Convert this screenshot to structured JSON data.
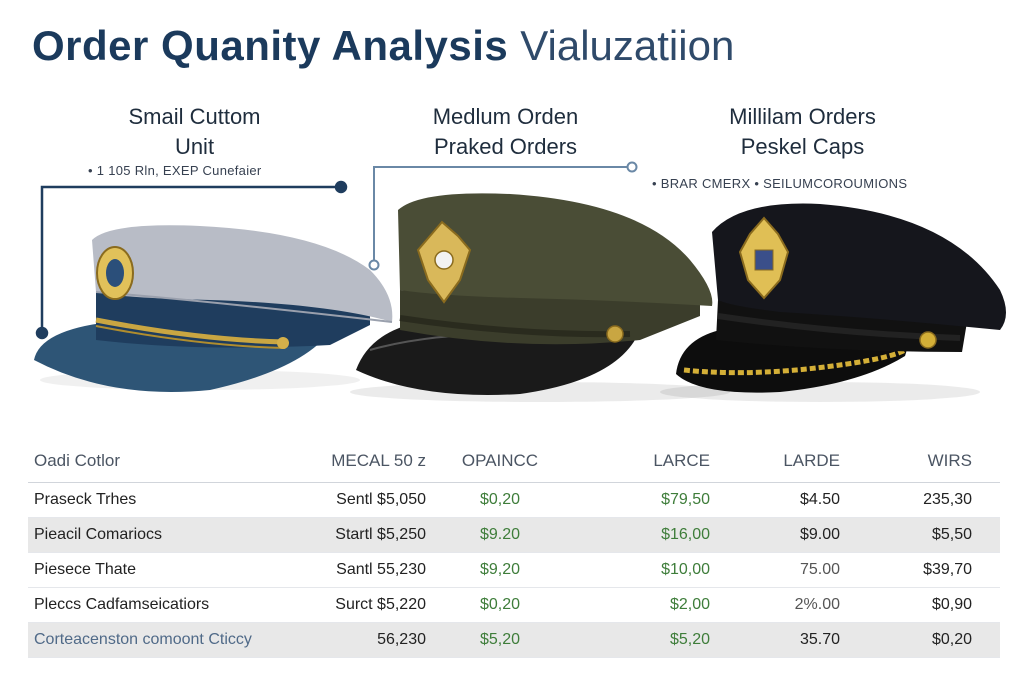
{
  "page": {
    "title_bold": "Order Quanity Analysis",
    "title_light": "Vialuzatiion"
  },
  "caps": [
    {
      "label_line1": "Smail Cuttom",
      "label_line2": "Unit",
      "note": "• 1 105 Rln,  EXEP Cunefaier",
      "icon": "navy-peaked-cap-icon",
      "colors": {
        "crown": "#b8bcc6",
        "band": "#1f3d5e",
        "visor": "#2e5576"
      }
    },
    {
      "label_line1": "Medlum Orden",
      "label_line2": "Praked Orders",
      "note": "",
      "icon": "olive-peaked-cap-icon",
      "colors": {
        "crown": "#4a4d36",
        "band": "#3b3d2b",
        "visor": "#1a1a1a"
      }
    },
    {
      "label_line1": "Millilam Orders",
      "label_line2": "Peskel Caps",
      "note": "• BRAR CMERX  •  SEILUMCOROUMIONS",
      "icon": "black-peaked-cap-icon",
      "colors": {
        "crown": "#15161c",
        "band": "#111",
        "visor": "#0d0d0d"
      }
    }
  ],
  "table": {
    "headers": [
      "Oadi Cotlor",
      "MECAL 50 z",
      "OPAINCC",
      "LARCE",
      "LARDE",
      "WIRS"
    ],
    "rows": [
      [
        "Prasеck Trhes",
        "Sentl $5,050",
        "$0,20",
        "$79,50",
        "$4.50",
        "235,30"
      ],
      [
        "Pieacil Comariocs",
        "Startl $5,250",
        "$9.20",
        "$16,00",
        "$9.00",
        "$5,50"
      ],
      [
        "Piesece Thate",
        "Santl 55,230",
        "$9,20",
        "$10,00",
        "75.00",
        "$39,70"
      ],
      [
        "Pleccs Cadfamseicatiors",
        "Surct $5,220",
        "$0,20",
        "$2,00",
        "2%.00",
        "$0,90"
      ],
      [
        "Corteacenston comoont Cticcy",
        "56,230",
        "$5,20",
        "$5,20",
        "35.70",
        "$0,20"
      ]
    ]
  },
  "colors": {
    "title": "#1b3a5c",
    "accent_line": "#1f3d5e",
    "money_green": "#3e7d3a",
    "row_shade": "#e8e8e8",
    "gold_trim": "#c9a642"
  }
}
